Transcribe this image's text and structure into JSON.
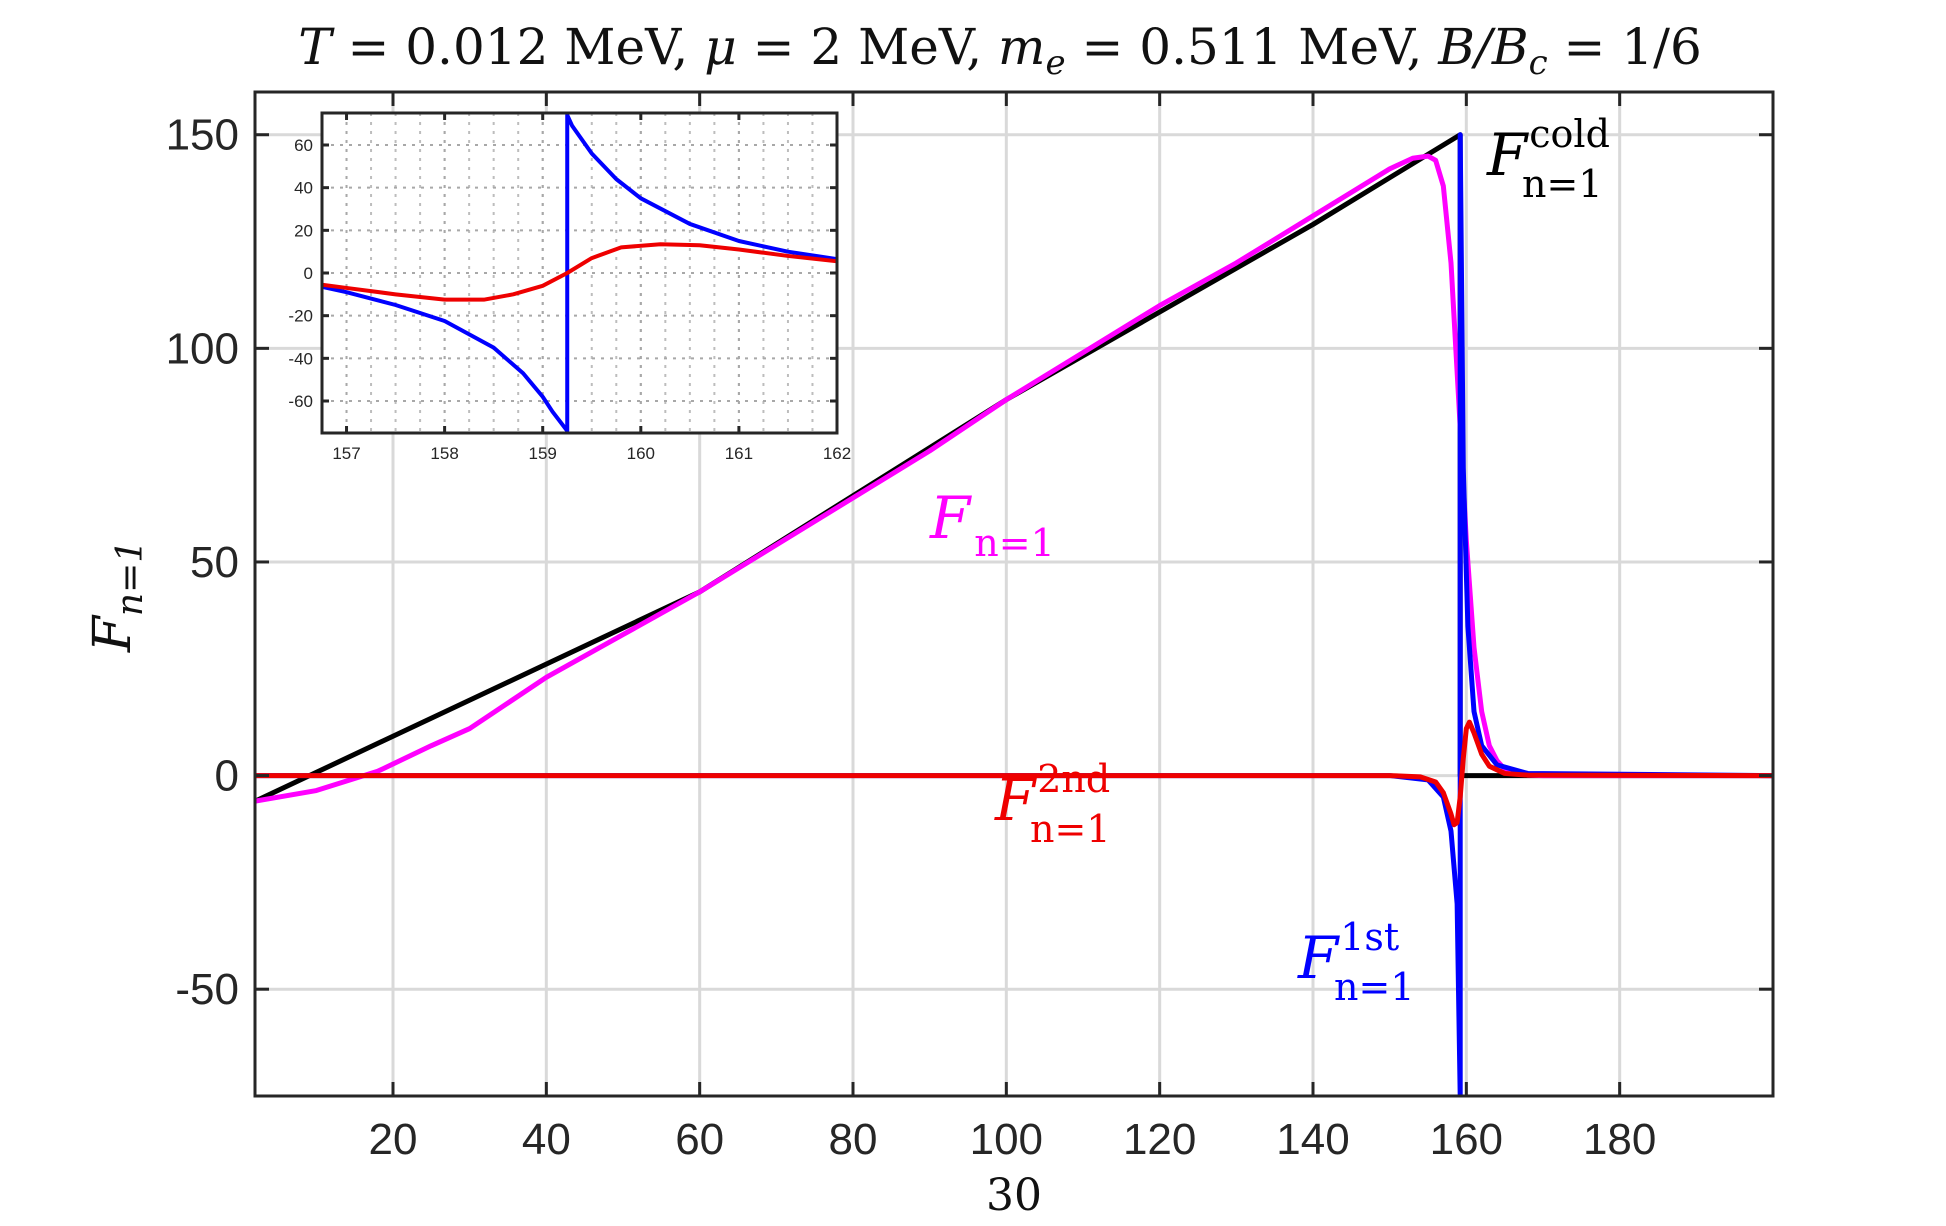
{
  "chart_data": [
    {
      "type": "line",
      "title": "T = 0.012 MeV, μ = 2 MeV, m_e = 0.511 MeV, B/B_c = 1/6",
      "title_parts": [
        "T",
        " = 0.012 MeV, ",
        "μ",
        " = 2 MeV, ",
        "m",
        "e",
        " = 0.511 MeV, ",
        "B/B",
        "c",
        " = 1/6"
      ],
      "xlabel": "30",
      "ylabel": "F",
      "ylabel_sub": "n=1",
      "xlim": [
        2,
        200
      ],
      "ylim": [
        -75,
        160
      ],
      "xticks": [
        20,
        40,
        60,
        80,
        100,
        120,
        140,
        160,
        180
      ],
      "xtick_labels": [
        "20",
        "40",
        "60",
        "80",
        "100",
        "120",
        "140",
        "160",
        "180"
      ],
      "yticks": [
        -50,
        0,
        50,
        100,
        150
      ],
      "ytick_labels": [
        "-50",
        "0",
        "50",
        "100",
        "150"
      ],
      "grid": true,
      "series": [
        {
          "name": "F_{n=1}^{cold}",
          "label_main": "F",
          "label_sup": "cold",
          "label_sub": "n=1",
          "color": "#000000",
          "x": [
            2,
            60,
            100,
            140,
            159.2,
            159.2,
            200
          ],
          "y": [
            -6,
            43,
            88,
            129,
            150,
            0,
            0
          ]
        },
        {
          "name": "F_{n=1}",
          "label_main": "F",
          "label_sup": "",
          "label_sub": "n=1",
          "color": "#ff00ff",
          "x": [
            2,
            10,
            18,
            25,
            30,
            40,
            50,
            60,
            70,
            80,
            90,
            100,
            110,
            120,
            130,
            140,
            150,
            153,
            155,
            156,
            157,
            158,
            159,
            160,
            161,
            162,
            163,
            164,
            165,
            166,
            168,
            170,
            200
          ],
          "y": [
            -6,
            -3.5,
            1,
            7,
            11,
            23,
            33,
            43,
            54,
            65,
            76,
            88,
            99,
            110,
            120,
            131,
            142,
            144.5,
            145,
            144,
            138,
            120,
            88,
            55,
            30,
            15,
            7,
            3.5,
            1.5,
            0.6,
            0.1,
            0,
            0
          ]
        },
        {
          "name": "F_{n=1}^{1st}",
          "label_main": "F",
          "label_sup": "1st",
          "label_sub": "n=1",
          "color": "#0000ff",
          "x": [
            2,
            150,
            155,
            157,
            158,
            158.8,
            159.2,
            159.2,
            159.6,
            160.2,
            161,
            162,
            164,
            168,
            200
          ],
          "y": [
            0,
            0,
            -1,
            -5,
            -13,
            -30,
            -75,
            150,
            72,
            35,
            15,
            7,
            2.5,
            0.5,
            0
          ]
        },
        {
          "name": "F_{n=1}^{2nd}",
          "label_main": "F",
          "label_sup": "2nd",
          "label_sub": "n=1",
          "color": "#ee0000",
          "x": [
            2,
            150,
            154,
            156,
            157,
            158,
            158.4,
            158.8,
            159.2,
            159.6,
            160,
            160.4,
            161,
            162,
            163,
            165,
            168,
            200
          ],
          "y": [
            0,
            0,
            -0.3,
            -1.5,
            -4,
            -9,
            -11.5,
            -11,
            -5,
            4,
            11,
            12.5,
            10,
            5,
            2.2,
            0.5,
            0.1,
            0
          ]
        }
      ]
    },
    {
      "type": "line",
      "role": "inset",
      "xlim": [
        156.75,
        162
      ],
      "ylim": [
        -75,
        75
      ],
      "xticks": [
        157,
        158,
        159,
        160,
        161,
        162
      ],
      "xtick_labels": [
        "157",
        "158",
        "159",
        "160",
        "161",
        "162"
      ],
      "yticks": [
        -60,
        -40,
        -20,
        0,
        20,
        40,
        60
      ],
      "ytick_labels": [
        "-60",
        "-40",
        "-20",
        "0",
        "20",
        "40",
        "60"
      ],
      "grid": true,
      "series": [
        {
          "name": "F_{n=1}^{1st}",
          "color": "#0000ff",
          "x": [
            156.75,
            157,
            157.5,
            158,
            158.5,
            158.8,
            159,
            159.1,
            159.25,
            159.25,
            159.3,
            159.5,
            159.75,
            160,
            160.5,
            161,
            161.5,
            162
          ],
          "y": [
            -6.5,
            -9,
            -15,
            -22.5,
            -35,
            -47,
            -58,
            -65,
            -74,
            74,
            69,
            56,
            44,
            35,
            23,
            15,
            10,
            6.5
          ]
        },
        {
          "name": "F_{n=1}^{2nd}",
          "color": "#ee0000",
          "x": [
            156.75,
            157,
            157.5,
            158,
            158.4,
            158.7,
            159,
            159.25,
            159.5,
            159.8,
            160.2,
            160.6,
            161,
            161.5,
            162
          ],
          "y": [
            -5.5,
            -7,
            -10,
            -12.5,
            -12.5,
            -10,
            -6,
            0,
            7,
            12,
            13.5,
            13,
            11,
            8,
            5.5
          ]
        }
      ]
    }
  ]
}
